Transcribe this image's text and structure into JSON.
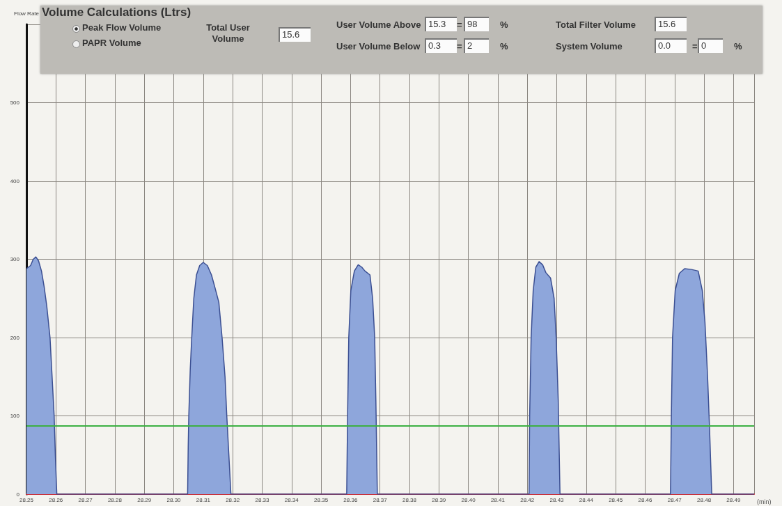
{
  "chart_data": {
    "type": "area",
    "ylabel": "Flow Rate",
    "xlabel": "(min)",
    "xlim": [
      28.25,
      28.497
    ],
    "xticks": [
      28.25,
      28.26,
      28.27,
      28.28,
      28.29,
      {
        "value": 28.3,
        "label": "28.30"
      },
      28.31,
      28.32,
      28.33,
      28.34,
      28.35,
      28.36,
      28.37,
      28.38,
      28.39,
      {
        "value": 28.4,
        "label": "28.40"
      },
      28.41,
      28.42,
      28.43,
      28.44,
      28.45,
      28.46,
      28.47,
      28.48,
      28.49
    ],
    "ylim": [
      0,
      600
    ],
    "yticks": [
      0,
      100,
      200,
      300,
      400,
      500
    ],
    "grid": true,
    "marker": "none",
    "series": [
      {
        "color": "#8ea6db",
        "x": [
          28.25,
          28.2514,
          28.2523,
          28.2532,
          28.2541,
          28.2551,
          28.256,
          28.2569,
          28.258,
          28.2587,
          28.2594,
          28.2598,
          28.2603,
          28.3047,
          28.3049,
          28.3051,
          28.3056,
          28.3061,
          28.3068,
          28.3077,
          28.3088,
          28.31,
          28.3114,
          28.3128,
          28.3139,
          28.3153,
          28.3164,
          28.3174,
          28.318,
          28.3187,
          28.3194,
          28.3587,
          28.359,
          28.3594,
          28.3601,
          28.3613,
          28.3626,
          28.3638,
          28.3649,
          28.3666,
          28.3675,
          28.3682,
          28.3686,
          28.3691,
          28.4206,
          28.4208,
          28.4213,
          28.422,
          28.4229,
          28.424,
          28.4252,
          28.4263,
          28.4279,
          28.4291,
          28.4298,
          28.4305,
          28.4311,
          28.4686,
          28.4689,
          28.4693,
          28.4702,
          28.4716,
          28.4734,
          28.4757,
          28.478,
          28.4794,
          28.4803,
          28.4812,
          28.4819,
          28.4826,
          28.497
        ],
        "values": [
          288,
          292,
          300,
          303,
          298,
          285,
          265,
          240,
          200,
          150,
          100,
          50,
          0,
          0,
          60,
          100,
          160,
          200,
          250,
          280,
          292,
          296,
          292,
          280,
          265,
          245,
          200,
          150,
          100,
          50,
          0,
          0,
          100,
          200,
          260,
          285,
          293,
          290,
          285,
          280,
          250,
          200,
          120,
          0,
          0,
          100,
          200,
          260,
          290,
          297,
          293,
          283,
          276,
          250,
          200,
          120,
          0,
          0,
          100,
          200,
          260,
          282,
          288,
          287,
          285,
          260,
          220,
          150,
          80,
          0,
          0
        ]
      }
    ],
    "ref_lines": [
      {
        "axis": "y",
        "value": 87,
        "color": "#3cb043"
      }
    ],
    "annotations": [
      "Volume Calculations (Ltrs)",
      "Peak Flow Volume",
      "PAPR Volume",
      "Total User Volume",
      "15.6",
      "User Volume Above",
      "15.3",
      "=",
      "98",
      "%",
      "Total Filter Volume",
      "15.6",
      "User Volume Below",
      "0.3",
      "=",
      "2",
      "%",
      "System Volume",
      "0.0",
      "=",
      "0",
      "%"
    ]
  }
}
